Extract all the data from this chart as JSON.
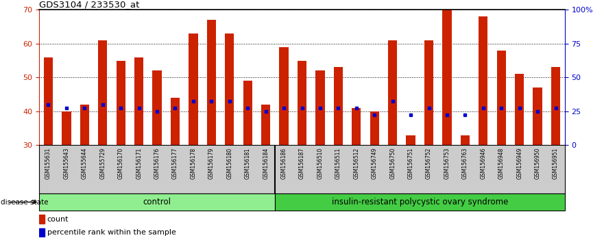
{
  "title": "GDS3104 / 233530_at",
  "samples": [
    "GSM155631",
    "GSM155643",
    "GSM155644",
    "GSM155729",
    "GSM156170",
    "GSM156171",
    "GSM156176",
    "GSM156177",
    "GSM156178",
    "GSM156179",
    "GSM156180",
    "GSM156181",
    "GSM156184",
    "GSM156186",
    "GSM156187",
    "GSM156510",
    "GSM156511",
    "GSM156512",
    "GSM156749",
    "GSM156750",
    "GSM156751",
    "GSM156752",
    "GSM156753",
    "GSM156763",
    "GSM156946",
    "GSM156948",
    "GSM156949",
    "GSM156950",
    "GSM156951"
  ],
  "counts": [
    56,
    40,
    42,
    61,
    55,
    56,
    52,
    44,
    63,
    67,
    63,
    49,
    42,
    59,
    55,
    52,
    53,
    41,
    40,
    61,
    33,
    61,
    73,
    33,
    68,
    58,
    51,
    47,
    53
  ],
  "percentile_ranks_left_scale": [
    42,
    41,
    41,
    42,
    41,
    41,
    40,
    41,
    43,
    43,
    43,
    41,
    40,
    41,
    41,
    41,
    41,
    41,
    39,
    43,
    39,
    41,
    39,
    39,
    41,
    41,
    41,
    40,
    41
  ],
  "group_labels": [
    "control",
    "insulin-resistant polycystic ovary syndrome"
  ],
  "group_sizes": [
    13,
    16
  ],
  "bar_color": "#CC2200",
  "percentile_color": "#0000CC",
  "ylim_left": [
    30,
    70
  ],
  "yticks_left": [
    30,
    40,
    50,
    60,
    70
  ],
  "ylim_right": [
    0,
    100
  ],
  "yticks_right": [
    0,
    25,
    50,
    75,
    100
  ],
  "background_color": "#ffffff",
  "ctrl_color": "#90EE90",
  "irp_color": "#44CC44"
}
